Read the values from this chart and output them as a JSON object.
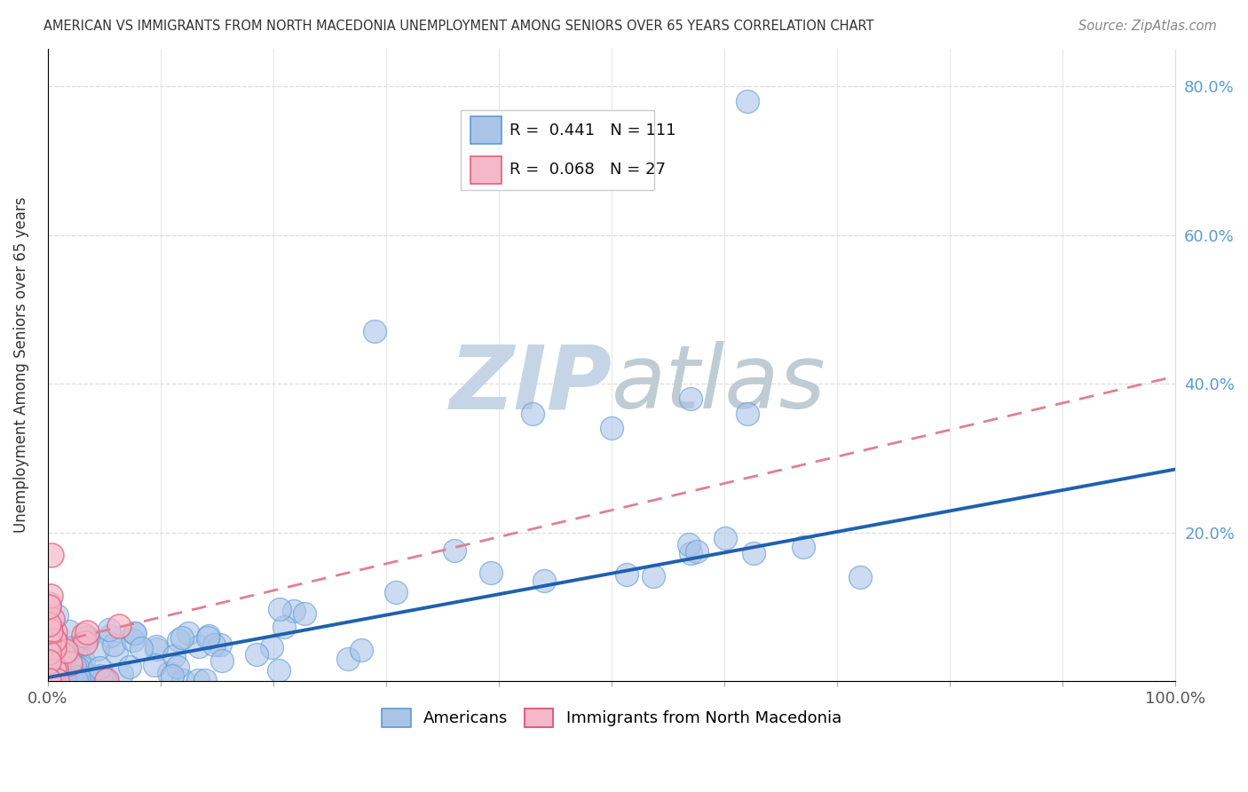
{
  "title": "AMERICAN VS IMMIGRANTS FROM NORTH MACEDONIA UNEMPLOYMENT AMONG SENIORS OVER 65 YEARS CORRELATION CHART",
  "source": "Source: ZipAtlas.com",
  "ylabel": "Unemployment Among Seniors over 65 years",
  "r_americans": 0.441,
  "n_americans": 111,
  "r_immigrants": 0.068,
  "n_immigrants": 27,
  "american_color": "#aac4e8",
  "american_edge_color": "#5b9bd5",
  "immigrant_color": "#f5b8c8",
  "immigrant_edge_color": "#e06080",
  "trend_american_color": "#2060b0",
  "trend_immigrant_color": "#e08090",
  "watermark_zip_color": "#c8d8e8",
  "watermark_atlas_color": "#c8d4dc",
  "background_color": "#ffffff",
  "grid_color": "#dddddd",
  "ytick_color": "#5b9bd5",
  "trend_am_slope": 0.28,
  "trend_am_intercept": 0.005,
  "trend_im_slope": 0.36,
  "trend_im_intercept": 0.05
}
